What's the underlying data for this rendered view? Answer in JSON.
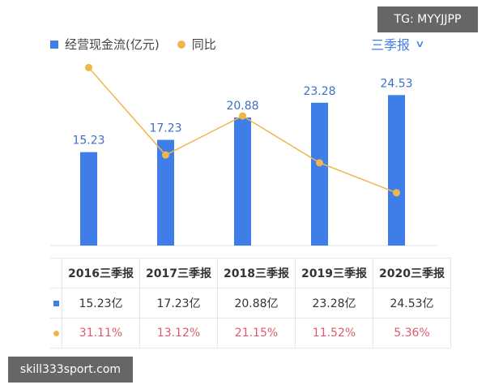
{
  "legend": {
    "bar_label": "经营现金流(亿元)",
    "line_label": "同比"
  },
  "period_selector": {
    "label": "三季报",
    "icon": "chevron-down-icon"
  },
  "watermarks": {
    "tg": "TG: MYYJJPP",
    "site": "skill333sport.com"
  },
  "colors": {
    "bar": "#3f7ee8",
    "line": "#f0b64b",
    "pct_text": "#e05a6a"
  },
  "chart_data": {
    "type": "bar",
    "categories": [
      "2016三季报",
      "2017三季报",
      "2018三季报",
      "2019三季报",
      "2020三季报"
    ],
    "series": [
      {
        "name": "经营现金流(亿元)",
        "type": "bar",
        "values": [
          15.23,
          17.23,
          20.88,
          23.28,
          24.53
        ],
        "labels": [
          "15.23",
          "17.23",
          "20.88",
          "23.28",
          "24.53"
        ]
      },
      {
        "name": "同比",
        "type": "line",
        "values": [
          31.11,
          13.12,
          21.15,
          11.52,
          5.36
        ]
      }
    ],
    "title": "",
    "xlabel": "",
    "ylabel": ""
  },
  "table": {
    "headers": [
      "2016三季报",
      "2017三季报",
      "2018三季报",
      "2019三季报",
      "2020三季报"
    ],
    "values_row": [
      "15.23亿",
      "17.23亿",
      "20.88亿",
      "23.28亿",
      "24.53亿"
    ],
    "pct_row": [
      "31.11%",
      "13.12%",
      "21.15%",
      "11.52%",
      "5.36%"
    ]
  }
}
